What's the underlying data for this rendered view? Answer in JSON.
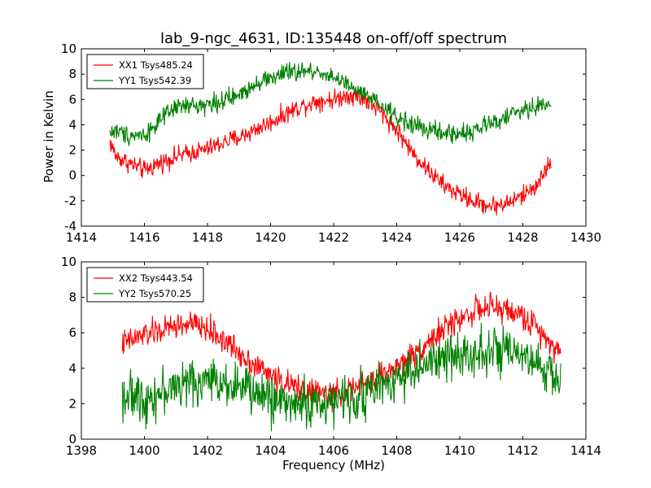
{
  "figure": {
    "title": "lab_9-ngc_4631, ID:135448 on-off/off spectrum",
    "xlabel": "Frequency (MHz)",
    "ylabel": "Power in Kelvin"
  },
  "chart_data": [
    {
      "type": "line",
      "title": "lab_9-ngc_4631, ID:135448 on-off/off spectrum",
      "xlabel": "",
      "ylabel": "Power in Kelvin",
      "xlim": [
        1414,
        1430
      ],
      "ylim": [
        -4,
        10
      ],
      "xticks": [
        1414,
        1416,
        1418,
        1420,
        1422,
        1424,
        1426,
        1428,
        1430
      ],
      "yticks": [
        -4,
        -2,
        0,
        2,
        4,
        6,
        8,
        10
      ],
      "grid": false,
      "legend": "top-left",
      "series": [
        {
          "name": "XX1 Tsys485.24",
          "color": "#ff0000",
          "x": [
            1414.9,
            1415.1,
            1415.5,
            1416.0,
            1416.5,
            1417.0,
            1417.5,
            1418.0,
            1418.5,
            1419.0,
            1419.5,
            1420.0,
            1420.5,
            1421.0,
            1421.5,
            1422.0,
            1422.5,
            1423.0,
            1423.5,
            1424.0,
            1424.5,
            1425.0,
            1425.5,
            1426.0,
            1426.5,
            1427.0,
            1427.5,
            1428.0,
            1428.5,
            1428.9
          ],
          "values": [
            2.7,
            1.5,
            1.0,
            0.4,
            1.0,
            1.5,
            1.8,
            2.1,
            2.6,
            3.0,
            3.6,
            4.2,
            4.9,
            5.5,
            5.9,
            6.0,
            6.4,
            6.0,
            5.0,
            3.6,
            1.8,
            0.4,
            -0.8,
            -1.5,
            -2.1,
            -2.4,
            -2.2,
            -1.6,
            -0.6,
            1.2
          ]
        },
        {
          "name": "YY1 Tsys542.39",
          "color": "#008000",
          "x": [
            1414.9,
            1415.1,
            1415.5,
            1416.0,
            1416.5,
            1417.0,
            1417.5,
            1418.0,
            1418.5,
            1419.0,
            1419.5,
            1420.0,
            1420.5,
            1421.0,
            1421.5,
            1422.0,
            1422.5,
            1423.0,
            1423.5,
            1424.0,
            1424.5,
            1425.0,
            1425.5,
            1426.0,
            1426.5,
            1427.0,
            1427.5,
            1428.0,
            1428.5,
            1428.9
          ],
          "values": [
            3.4,
            3.5,
            3.2,
            3.2,
            4.3,
            5.4,
            5.5,
            5.6,
            5.9,
            6.3,
            7.3,
            7.7,
            8.1,
            8.2,
            8.2,
            7.8,
            7.0,
            6.3,
            5.5,
            4.6,
            4.0,
            3.6,
            3.3,
            3.3,
            3.6,
            4.1,
            4.7,
            5.1,
            5.5,
            5.6
          ]
        }
      ]
    },
    {
      "type": "line",
      "title": "",
      "xlabel": "Frequency (MHz)",
      "ylabel": "",
      "xlim": [
        1398,
        1414
      ],
      "ylim": [
        0,
        10
      ],
      "xticks": [
        1398,
        1400,
        1402,
        1404,
        1406,
        1408,
        1410,
        1412,
        1414
      ],
      "yticks": [
        0,
        2,
        4,
        6,
        8,
        10
      ],
      "grid": false,
      "legend": "top-left",
      "series": [
        {
          "name": "XX2 Tsys443.54",
          "color": "#ff0000",
          "x": [
            1399.3,
            1399.5,
            1400.0,
            1400.5,
            1401.0,
            1401.5,
            1402.0,
            1402.5,
            1403.0,
            1403.5,
            1404.0,
            1404.5,
            1405.0,
            1405.5,
            1406.0,
            1406.5,
            1407.0,
            1407.5,
            1408.0,
            1408.5,
            1409.0,
            1409.5,
            1410.0,
            1410.5,
            1411.0,
            1411.5,
            1412.0,
            1412.5,
            1413.0,
            1413.2
          ],
          "values": [
            5.4,
            5.5,
            5.9,
            6.1,
            6.4,
            6.5,
            6.2,
            5.6,
            4.9,
            4.2,
            3.6,
            3.1,
            2.8,
            2.6,
            2.5,
            2.7,
            3.1,
            3.6,
            4.1,
            4.7,
            5.5,
            6.2,
            6.8,
            7.3,
            7.4,
            7.3,
            6.9,
            6.2,
            5.3,
            4.8
          ]
        },
        {
          "name": "YY2 Tsys570.25",
          "color": "#008000",
          "x": [
            1399.3,
            1399.5,
            1400.0,
            1400.5,
            1401.0,
            1401.5,
            1402.0,
            1402.5,
            1403.0,
            1403.5,
            1404.0,
            1404.5,
            1405.0,
            1405.5,
            1406.0,
            1406.5,
            1407.0,
            1407.5,
            1408.0,
            1408.5,
            1409.0,
            1409.5,
            1410.0,
            1410.5,
            1411.0,
            1411.5,
            1412.0,
            1412.5,
            1413.0,
            1413.2
          ],
          "values": [
            2.6,
            2.4,
            2.3,
            2.6,
            3.0,
            3.2,
            3.3,
            3.3,
            3.0,
            2.6,
            2.3,
            2.1,
            2.0,
            2.0,
            2.1,
            2.3,
            2.6,
            3.0,
            3.5,
            3.9,
            4.2,
            4.5,
            4.8,
            5.0,
            5.0,
            4.8,
            4.5,
            4.1,
            3.6,
            3.4
          ]
        }
      ]
    }
  ]
}
